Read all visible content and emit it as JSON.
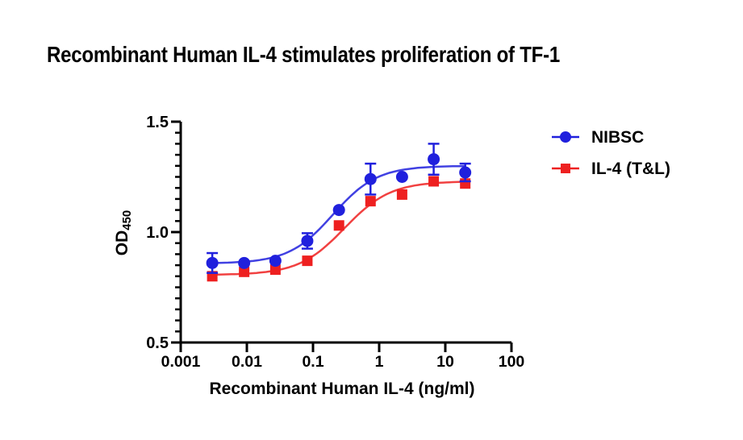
{
  "title": "Recombinant Human IL-4 stimulates proliferation of TF-1",
  "chart_data": {
    "type": "scatter",
    "subtype": "dose-response sigmoid fit with error bars",
    "title": "Recombinant Human IL-4 stimulates proliferation of TF-1",
    "xlabel": "Recombinant Human IL-4 (ng/ml)",
    "ylabel": "OD",
    "ylabel_sub": "450",
    "x_scale": "log",
    "xlim": [
      0.001,
      100
    ],
    "ylim": [
      0.5,
      1.5
    ],
    "x_ticks": [
      "0.001",
      "0.01",
      "0.1",
      "1",
      "10",
      "100"
    ],
    "y_ticks": [
      "0.5",
      "1.0",
      "1.5"
    ],
    "y_minor_interval": 0.05,
    "grid": false,
    "legend_position": "right",
    "background_color": "#ffffff",
    "axis_color": "#000000",
    "text_color": "#000000",
    "x": [
      0.003,
      0.0091,
      0.027,
      0.082,
      0.247,
      0.74,
      2.22,
      6.67,
      20
    ],
    "series": [
      {
        "name": "NIBSC",
        "color": "#2020dd",
        "marker": "circle",
        "values": [
          0.86,
          0.86,
          0.87,
          0.96,
          1.1,
          1.24,
          1.25,
          1.33,
          1.27
        ],
        "errors": [
          0.045,
          0,
          0,
          0.035,
          0,
          0.07,
          0,
          0.07,
          0.04
        ],
        "fit": {
          "bottom": 0.858,
          "top": 1.3,
          "ec50": 0.2,
          "hill": 1.3
        }
      },
      {
        "name": "IL-4 (T&L)",
        "color": "#ee2020",
        "marker": "square",
        "values": [
          0.8,
          0.82,
          0.83,
          0.87,
          1.03,
          1.14,
          1.17,
          1.23,
          1.22
        ],
        "errors": [
          0,
          0,
          0,
          0,
          0,
          0,
          0,
          0,
          0
        ],
        "fit": {
          "bottom": 0.806,
          "top": 1.23,
          "ec50": 0.3,
          "hill": 1.25
        }
      }
    ]
  }
}
